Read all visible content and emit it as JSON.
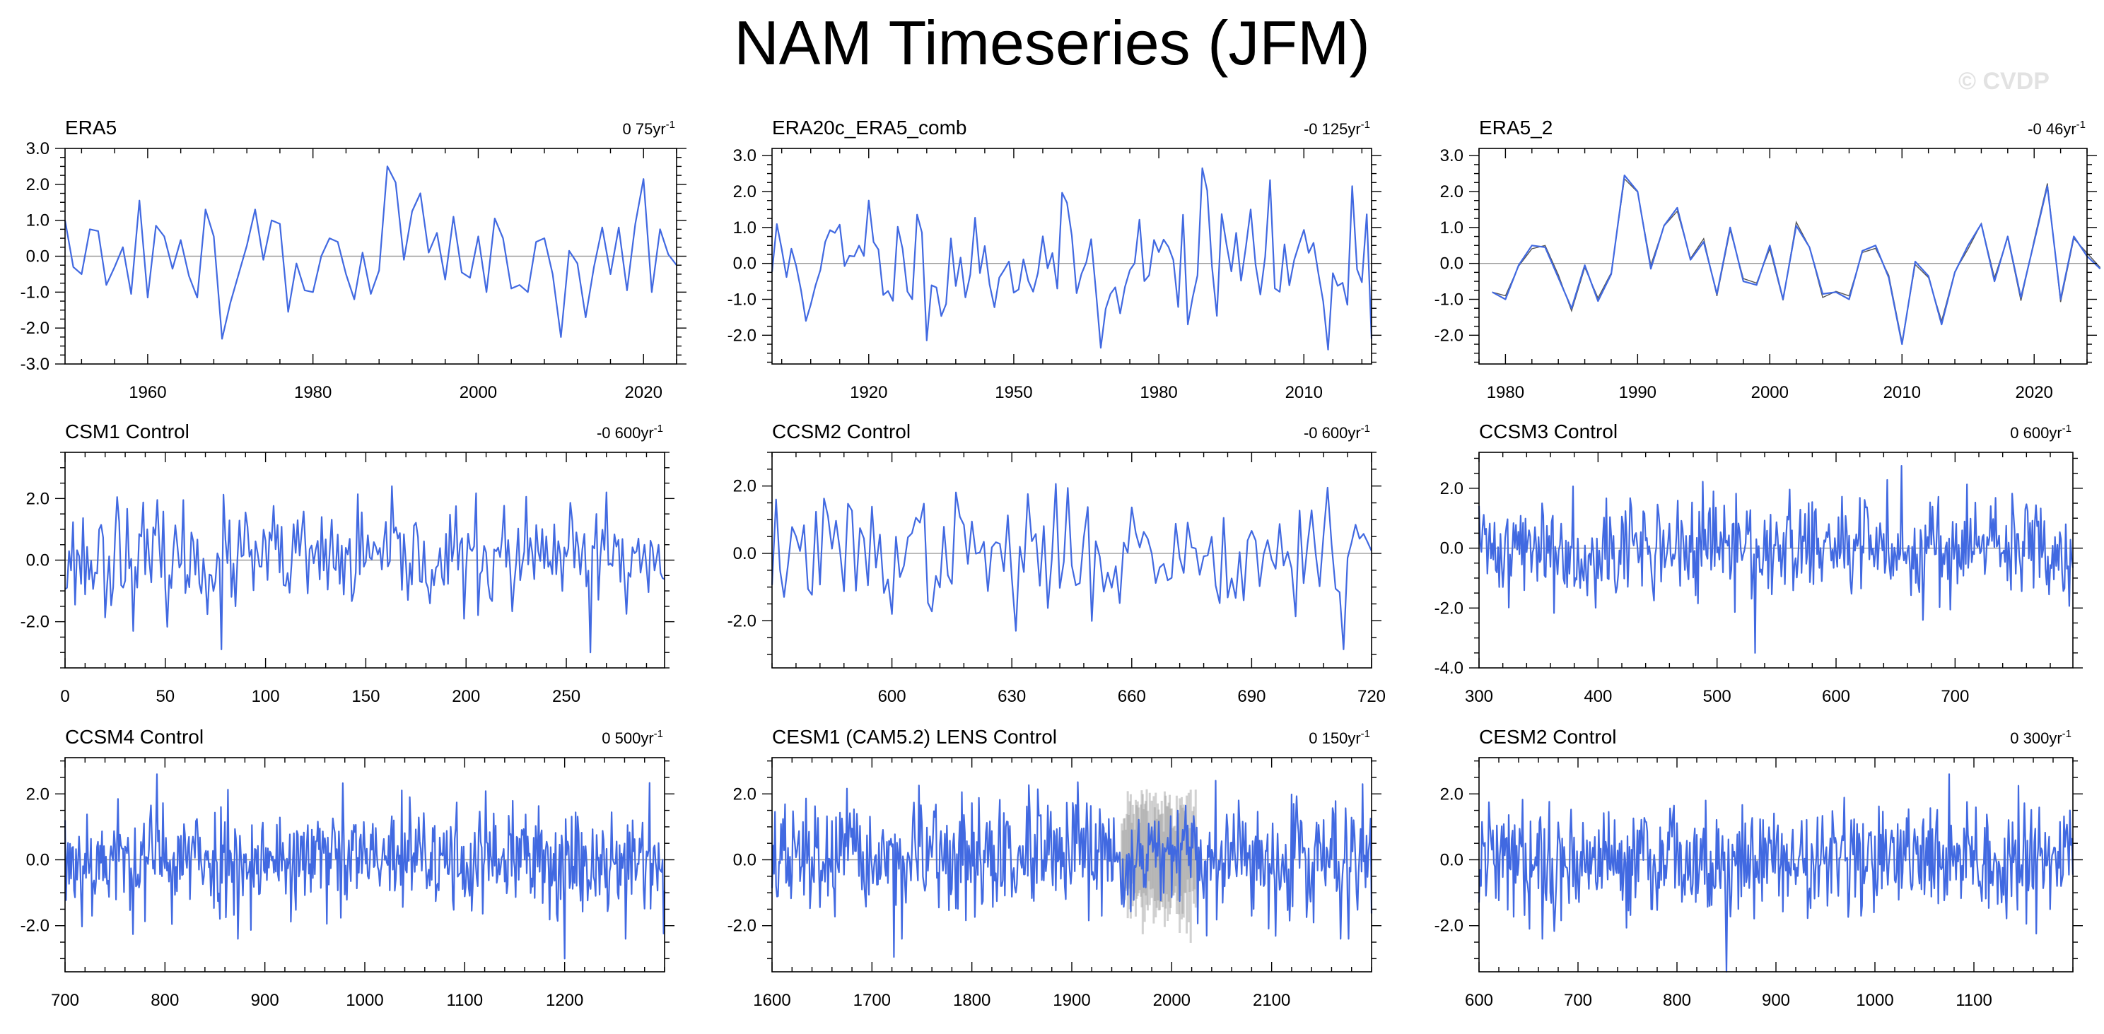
{
  "title": "NAM Timeseries (JFM)",
  "watermark": "© CVDP",
  "colors": {
    "line": "#4169e1",
    "background": "#ffffff",
    "axis": "#000000",
    "zero_line": "#9a9a9a",
    "ensemble_spread": "#9a9a9a"
  },
  "chart_data": [
    {
      "type": "line",
      "title": "ERA5",
      "trend": "0 75yr",
      "trend_unit": "-1",
      "xlim": [
        1950,
        2024
      ],
      "ylim": [
        -3,
        3
      ],
      "xticks": [
        1960,
        1980,
        2000,
        2020
      ],
      "xtick_labels": [
        "1960",
        "1980",
        "2000",
        "2020"
      ],
      "yticks": [
        -3,
        -2,
        -1,
        0,
        1,
        2,
        3
      ],
      "ytick_labels": [
        "-3.0",
        "-2.0",
        "-1.0",
        "0.0",
        "1.0",
        "2.0",
        "3.0"
      ],
      "x_start": 1950,
      "x_step": 1,
      "values": [
        1.0,
        -0.3,
        -0.5,
        0.75,
        0.7,
        -0.8,
        -0.3,
        0.25,
        -1.05,
        1.55,
        -1.15,
        0.85,
        0.55,
        -0.35,
        0.45,
        -0.55,
        -1.15,
        1.3,
        0.55,
        -2.3,
        -1.3,
        -0.5,
        0.3,
        1.3,
        -0.1,
        1.0,
        0.9,
        -1.55,
        -0.2,
        -0.95,
        -1.0,
        0.0,
        0.5,
        0.4,
        -0.5,
        -1.2,
        0.1,
        -1.05,
        -0.4,
        2.5,
        2.05,
        -0.1,
        1.25,
        1.75,
        0.1,
        0.65,
        -0.65,
        1.1,
        -0.45,
        -0.6,
        0.55,
        -1.0,
        1.05,
        0.5,
        -0.9,
        -0.8,
        -1.0,
        0.4,
        0.5,
        -0.5,
        -2.25,
        0.15,
        -0.2,
        -1.7,
        -0.3,
        0.8,
        -0.5,
        0.8,
        -0.95,
        0.9,
        2.15,
        -1.0,
        0.75,
        0.05,
        -0.25
      ]
    },
    {
      "type": "line",
      "title": "ERA20c_ERA5_comb",
      "trend": "-0 125yr",
      "trend_unit": "-1",
      "xlim": [
        1900,
        2024
      ],
      "ylim": [
        -2.8,
        3.2
      ],
      "xticks": [
        1920,
        1950,
        1980,
        2010
      ],
      "xtick_labels": [
        "1920",
        "1950",
        "1980",
        "2010"
      ],
      "yticks": [
        -2,
        -1,
        0,
        1,
        2,
        3
      ],
      "ytick_labels": [
        "-2.0",
        "-1.0",
        "0.0",
        "1.0",
        "2.0",
        "3.0"
      ],
      "x_start": 1900,
      "x_step": 1,
      "generated": true,
      "seed": 11,
      "amplitude": 1.0,
      "anchors": [
        [
          1920,
          1.75
        ],
        [
          1968,
          -2.35
        ],
        [
          1989,
          2.65
        ],
        [
          2015,
          -2.4
        ],
        [
          2020,
          2.15
        ],
        [
          1907,
          -1.6
        ],
        [
          1999,
          1.5
        ]
      ]
    },
    {
      "type": "line",
      "title": "ERA5_2",
      "trend": "-0 46yr",
      "trend_unit": "-1",
      "xlim": [
        1978,
        2024
      ],
      "ylim": [
        -2.8,
        3.2
      ],
      "xticks": [
        1980,
        1990,
        2000,
        2010,
        2020
      ],
      "xtick_labels": [
        "1980",
        "1990",
        "2000",
        "2010",
        "2020"
      ],
      "yticks": [
        -2,
        -1,
        0,
        1,
        2,
        3
      ],
      "ytick_labels": [
        "-2.0",
        "-1.0",
        "0.0",
        "1.0",
        "2.0",
        "3.0"
      ],
      "x_start": 1979,
      "x_step": 1,
      "second_series_offset": 0.1,
      "values": [
        -0.8,
        -1.0,
        -0.05,
        0.5,
        0.45,
        -0.4,
        -1.25,
        -0.05,
        -1.05,
        -0.3,
        2.45,
        2.0,
        -0.15,
        1.05,
        1.55,
        0.1,
        0.6,
        -0.85,
        1.0,
        -0.5,
        -0.6,
        0.5,
        -1.0,
        1.05,
        0.45,
        -0.85,
        -0.8,
        -1.0,
        0.35,
        0.5,
        -0.4,
        -2.25,
        0.05,
        -0.35,
        -1.7,
        -0.25,
        0.5,
        1.1,
        -0.5,
        0.75,
        -0.95,
        0.6,
        2.15,
        -1.0,
        0.75,
        0.2,
        -0.15
      ]
    },
    {
      "type": "line",
      "title": "CSM1 Control",
      "trend": "-0 600yr",
      "trend_unit": "-1",
      "xlim": [
        0,
        299
      ],
      "ylim": [
        -3.5,
        3.5
      ],
      "xticks": [
        0,
        50,
        100,
        150,
        200,
        250
      ],
      "xtick_labels": [
        "0",
        "50",
        "100",
        "150",
        "200",
        "250"
      ],
      "yticks": [
        -2,
        0,
        2
      ],
      "ytick_labels": [
        "-2.0",
        "0.0",
        "2.0"
      ],
      "x_start": 0,
      "x_step": 1,
      "generated": true,
      "seed": 23,
      "amplitude": 1.0,
      "anchors": [
        [
          78,
          -2.9
        ],
        [
          262,
          -3.0
        ],
        [
          270,
          2.2
        ],
        [
          26,
          2.05
        ]
      ]
    },
    {
      "type": "line",
      "title": "CCSM2 Control",
      "trend": "-0 600yr",
      "trend_unit": "-1",
      "xlim": [
        570,
        720
      ],
      "ylim": [
        -3.4,
        3.0
      ],
      "xticks": [
        600,
        630,
        660,
        690,
        720
      ],
      "xtick_labels": [
        "600",
        "630",
        "660",
        "690",
        "720"
      ],
      "yticks": [
        -2,
        0,
        2
      ],
      "ytick_labels": [
        "-2.0",
        "0.0",
        "2.0"
      ],
      "x_start": 570,
      "x_step": 1,
      "generated": true,
      "seed": 37,
      "amplitude": 1.0,
      "anchors": [
        [
          713,
          -2.85
        ],
        [
          631,
          -2.3
        ],
        [
          709,
          1.95
        ]
      ]
    },
    {
      "type": "line",
      "title": "CCSM3 Control",
      "trend": "0 600yr",
      "trend_unit": "-1",
      "xlim": [
        300,
        799
      ],
      "ylim": [
        -4.0,
        3.2
      ],
      "xticks": [
        300,
        400,
        500,
        600,
        700
      ],
      "xtick_labels": [
        "300",
        "400",
        "500",
        "600",
        "700"
      ],
      "yticks": [
        -4,
        -2,
        0,
        2
      ],
      "ytick_labels": [
        "-4.0",
        "-2.0",
        "0.0",
        "2.0"
      ],
      "x_start": 300,
      "x_step": 1,
      "generated": true,
      "seed": 41,
      "amplitude": 1.0,
      "anchors": [
        [
          532,
          -3.5
        ],
        [
          655,
          2.75
        ]
      ]
    },
    {
      "type": "line",
      "title": "CCSM4 Control",
      "trend": "0 500yr",
      "trend_unit": "-1",
      "xlim": [
        700,
        1300
      ],
      "ylim": [
        -3.4,
        3.1
      ],
      "xticks": [
        700,
        800,
        900,
        1000,
        1100,
        1200
      ],
      "xtick_labels": [
        "700",
        "800",
        "900",
        "1000",
        "1100",
        "1200"
      ],
      "yticks": [
        -2,
        0,
        2
      ],
      "ytick_labels": [
        "-2.0",
        "0.0",
        "2.0"
      ],
      "x_start": 700,
      "x_step": 1,
      "generated": true,
      "seed": 53,
      "amplitude": 1.0,
      "anchors": [
        [
          1200,
          -3.0
        ],
        [
          792,
          2.6
        ]
      ]
    },
    {
      "type": "line",
      "title": "CESM1 (CAM5.2) LENS Control",
      "trend": "0 150yr",
      "trend_unit": "-1",
      "xlim": [
        1600,
        2200
      ],
      "ylim": [
        -3.4,
        3.1
      ],
      "xticks": [
        1600,
        1700,
        1800,
        1900,
        2000,
        2100
      ],
      "xtick_labels": [
        "1600",
        "1700",
        "1800",
        "1900",
        "2000",
        "2100"
      ],
      "yticks": [
        -2,
        0,
        2
      ],
      "ytick_labels": [
        "-2.0",
        "0.0",
        "2.0"
      ],
      "x_start": 1600,
      "x_step": 1,
      "generated": true,
      "seed": 67,
      "amplitude": 1.0,
      "anchors": [
        [
          1722,
          -2.95
        ],
        [
          2191,
          2.3
        ]
      ],
      "spread_xrange": [
        1950,
        2024
      ],
      "spread_amplitude": 1.8
    },
    {
      "type": "line",
      "title": "CESM2 Control",
      "trend": "0 300yr",
      "trend_unit": "-1",
      "xlim": [
        600,
        1200
      ],
      "ylim": [
        -3.4,
        3.1
      ],
      "xticks": [
        600,
        700,
        800,
        900,
        1000,
        1100
      ],
      "xtick_labels": [
        "600",
        "700",
        "800",
        "900",
        "1000",
        "1100"
      ],
      "yticks": [
        -2,
        0,
        2
      ],
      "ytick_labels": [
        "-2.0",
        "0.0",
        "2.0"
      ],
      "x_start": 600,
      "x_step": 1,
      "generated": true,
      "seed": 79,
      "amplitude": 1.0,
      "anchors": [
        [
          850,
          -3.4
        ],
        [
          1075,
          2.6
        ]
      ]
    }
  ]
}
